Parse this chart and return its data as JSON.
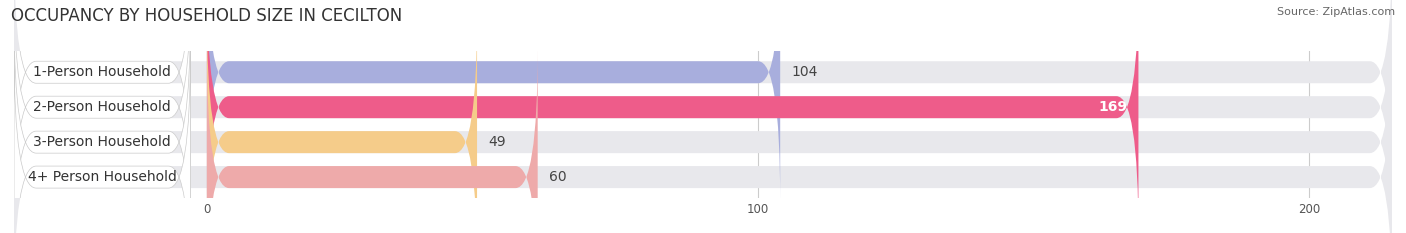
{
  "title": "OCCUPANCY BY HOUSEHOLD SIZE IN CECILTON",
  "source": "Source: ZipAtlas.com",
  "categories": [
    "1-Person Household",
    "2-Person Household",
    "3-Person Household",
    "4+ Person Household"
  ],
  "values": [
    104,
    169,
    49,
    60
  ],
  "bar_colors": [
    "#a8aedd",
    "#ee5c8a",
    "#f5cc8a",
    "#eeaaaa"
  ],
  "label_colors": [
    "#333333",
    "#ffffff",
    "#333333",
    "#333333"
  ],
  "xlim": [
    -35,
    215
  ],
  "xticks": [
    0,
    100,
    200
  ],
  "background_color": "#ffffff",
  "bar_bg_color": "#e8e8ec",
  "title_fontsize": 12,
  "label_fontsize": 10,
  "bar_height": 0.62,
  "bar_gap": 0.18
}
